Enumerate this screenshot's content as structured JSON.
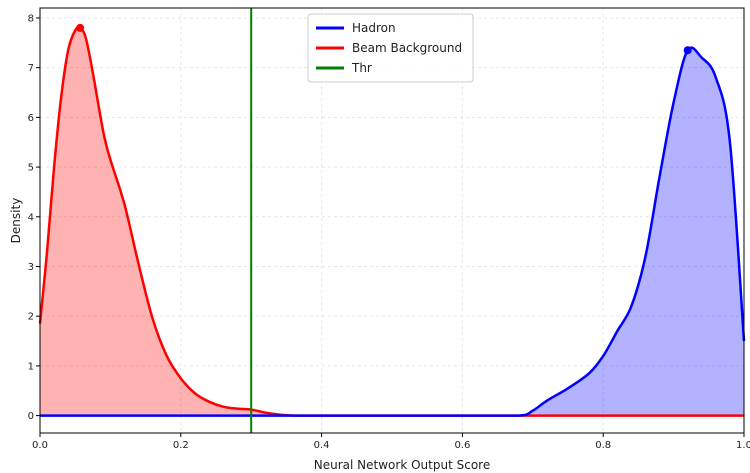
{
  "chart_data": {
    "type": "area",
    "xlabel": "Neural Network Output Score",
    "ylabel": "Density",
    "xlim": [
      0.0,
      1.0
    ],
    "ylim": [
      -0.35,
      8.2
    ],
    "xticks": [
      "0.0",
      "0.2",
      "0.4",
      "0.6",
      "0.8",
      "1.0"
    ],
    "xtick_values": [
      0.0,
      0.2,
      0.4,
      0.6,
      0.8,
      1.0
    ],
    "yticks": [
      "0",
      "1",
      "2",
      "3",
      "4",
      "5",
      "6",
      "7",
      "8"
    ],
    "ytick_values": [
      0,
      1,
      2,
      3,
      4,
      5,
      6,
      7,
      8
    ],
    "grid": true,
    "legend_position": "top-center",
    "series": [
      {
        "name": "Hadron",
        "color": "#0000ff",
        "fill": "#0000ff",
        "fill_opacity": 0.3,
        "peak": [
          0.92,
          7.35
        ],
        "x": [
          0.0,
          0.2,
          0.4,
          0.6,
          0.68,
          0.7,
          0.72,
          0.75,
          0.78,
          0.8,
          0.82,
          0.84,
          0.86,
          0.88,
          0.9,
          0.92,
          0.94,
          0.96,
          0.98,
          1.0
        ],
        "y": [
          0.0,
          0.0,
          0.0,
          0.0,
          0.0,
          0.1,
          0.3,
          0.55,
          0.85,
          1.2,
          1.7,
          2.2,
          3.2,
          4.8,
          6.3,
          7.35,
          7.2,
          6.8,
          5.5,
          1.5
        ]
      },
      {
        "name": "Beam Background",
        "color": "#ff0000",
        "fill": "#ff0000",
        "fill_opacity": 0.3,
        "peak": [
          0.057,
          7.8
        ],
        "x": [
          0.0,
          0.01,
          0.02,
          0.03,
          0.04,
          0.05,
          0.057,
          0.065,
          0.075,
          0.09,
          0.1,
          0.12,
          0.14,
          0.16,
          0.18,
          0.2,
          0.22,
          0.24,
          0.26,
          0.28,
          0.3,
          0.32,
          0.34,
          0.36,
          0.4,
          0.6,
          0.8,
          1.0
        ],
        "y": [
          1.85,
          3.3,
          5.0,
          6.4,
          7.35,
          7.75,
          7.8,
          7.6,
          6.9,
          5.7,
          5.15,
          4.25,
          3.05,
          1.95,
          1.2,
          0.75,
          0.45,
          0.28,
          0.18,
          0.14,
          0.12,
          0.06,
          0.02,
          0.0,
          0.0,
          0.0,
          0.0,
          0.0
        ]
      }
    ],
    "threshold": {
      "name": "Thr",
      "x": 0.3,
      "color": "#008000"
    }
  }
}
